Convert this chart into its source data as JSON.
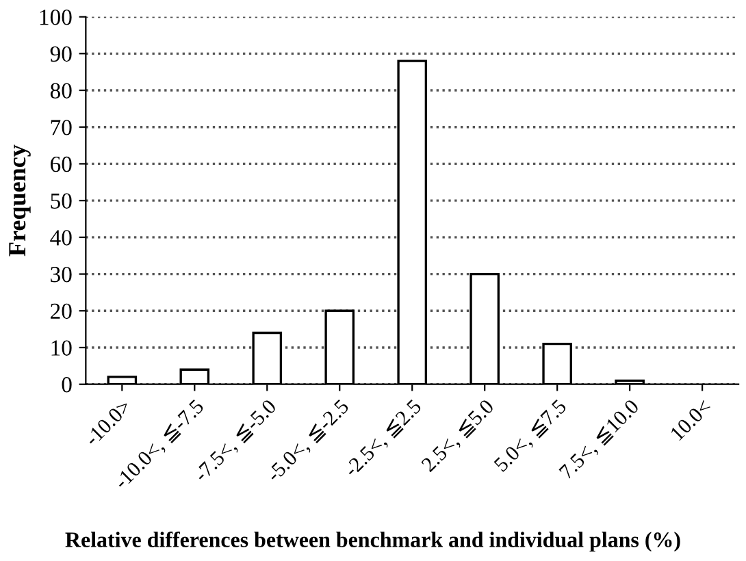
{
  "chart_data": {
    "type": "bar",
    "ylabel": "Frequency",
    "xlabel": "Relative differences between benchmark and individual plans (%)",
    "categories": [
      "-10.0>",
      "-10.0<, ≦-7.5",
      "-7.5<, ≦-5.0",
      "-5.0<, ≦-2.5",
      "-2.5<, ≦2.5",
      "2.5<, ≦5.0",
      "5.0<, ≦7.5",
      "7.5<, ≦10.0",
      "10.0<"
    ],
    "values": [
      2,
      4,
      14,
      20,
      88,
      30,
      11,
      1,
      0
    ],
    "color": "#ffffff",
    "ylim": [
      0,
      100
    ],
    "yticks": [
      0,
      10,
      20,
      30,
      40,
      50,
      60,
      70,
      80,
      90,
      100
    ],
    "grid": "y"
  }
}
